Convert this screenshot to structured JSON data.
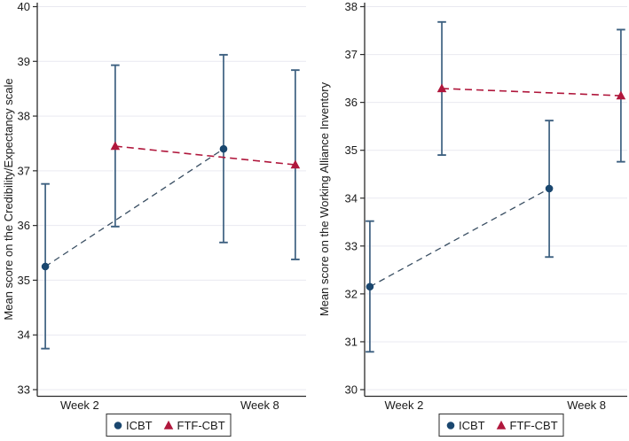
{
  "figure": {
    "background": "#ffffff",
    "legend_labels": [
      "ICBT",
      "FTF-CBT"
    ]
  },
  "chart_data": [
    {
      "type": "line",
      "title": "",
      "xlabel": "",
      "ylabel": "Mean score on the Credibility/Expectancy scale",
      "ylim": [
        33,
        40
      ],
      "yticks": [
        33,
        34,
        35,
        36,
        37,
        38,
        39,
        40
      ],
      "categories": [
        "Week 2",
        "Week 8"
      ],
      "category_x": [
        0.158,
        0.828
      ],
      "grid": true,
      "grid_color": "#e9e9f0",
      "axis_color": "#2b2b2b",
      "error_bar_color": "#3d6080",
      "legend": {
        "items": [
          "ICBT",
          "FTF-CBT"
        ],
        "position": "bottom"
      },
      "series": [
        {
          "name": "ICBT",
          "marker": "circle",
          "color": "#1a476f",
          "line_color": "#3a4f63",
          "x": [
            0.03,
            0.693
          ],
          "values": [
            35.25,
            37.4
          ],
          "ci_low": [
            33.75,
            35.69
          ],
          "ci_high": [
            36.76,
            39.12
          ]
        },
        {
          "name": "FTF-CBT",
          "marker": "triangle",
          "color": "#b0173c",
          "line_color": "#b0173c",
          "x": [
            0.29,
            0.96
          ],
          "values": [
            37.45,
            37.11
          ],
          "ci_low": [
            35.98,
            35.38
          ],
          "ci_high": [
            38.93,
            38.84
          ]
        }
      ]
    },
    {
      "type": "line",
      "title": "",
      "xlabel": "",
      "ylabel": "Mean score on the Working Alliance Inventory",
      "ylim": [
        30,
        38
      ],
      "yticks": [
        30,
        31,
        32,
        33,
        34,
        35,
        36,
        37,
        38
      ],
      "categories": [
        "Week 2",
        "Week 8"
      ],
      "category_x": [
        0.15,
        0.845
      ],
      "grid": true,
      "grid_color": "#e9e9f0",
      "axis_color": "#2b2b2b",
      "error_bar_color": "#3d6080",
      "legend": {
        "items": [
          "ICBT",
          "FTF-CBT"
        ],
        "position": "bottom"
      },
      "series": [
        {
          "name": "ICBT",
          "marker": "circle",
          "color": "#1a476f",
          "line_color": "#3a4f63",
          "x": [
            0.02,
            0.703
          ],
          "values": [
            32.15,
            34.2
          ],
          "ci_low": [
            30.79,
            32.77
          ],
          "ci_high": [
            33.52,
            35.62
          ]
        },
        {
          "name": "FTF-CBT",
          "marker": "triangle",
          "color": "#b0173c",
          "line_color": "#b0173c",
          "x": [
            0.294,
            0.976
          ],
          "values": [
            36.29,
            36.14
          ],
          "ci_low": [
            34.9,
            34.76
          ],
          "ci_high": [
            37.68,
            37.52
          ]
        }
      ]
    }
  ]
}
